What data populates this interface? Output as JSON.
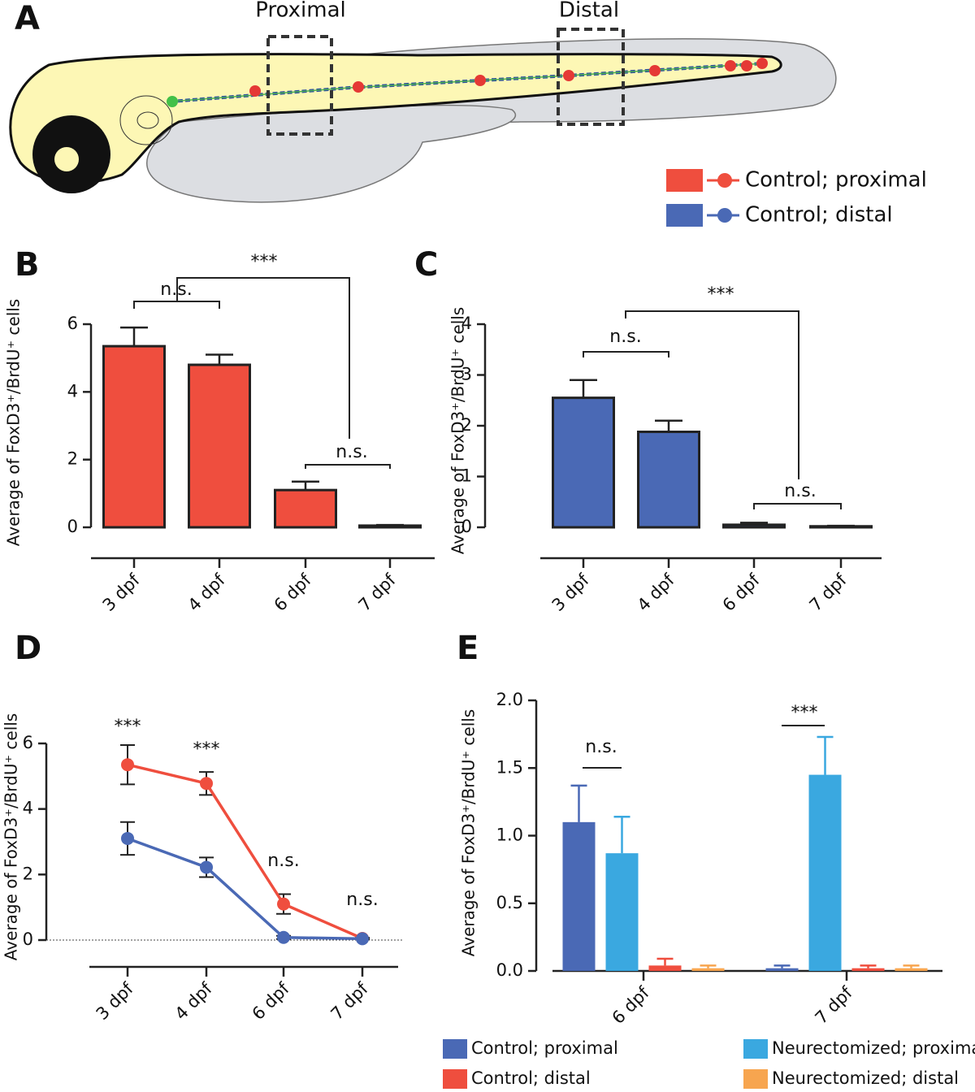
{
  "diagram": {
    "panel": "A",
    "regions": [
      "Proximal",
      "Distal"
    ]
  },
  "chart_data": [
    {
      "type": "bar",
      "panel": "B",
      "ylabel": "Average of FoxD3⁺/BrdU⁺ cells",
      "categories": [
        "3 dpf",
        "4 dpf",
        "6 dpf",
        "7 dpf"
      ],
      "values": [
        5.35,
        4.8,
        1.1,
        0.05
      ],
      "errors": [
        0.55,
        0.3,
        0.25,
        0.02
      ],
      "color": "#ef4e3e",
      "ylim": [
        0,
        6
      ],
      "yticks": [
        0,
        2,
        4,
        6
      ],
      "annotations": [
        "n.s.",
        "***",
        "n.s."
      ]
    },
    {
      "type": "bar",
      "panel": "C",
      "ylabel": "Average of FoxD3⁺/BrdU⁺ cells",
      "categories": [
        "3 dpf",
        "4 dpf",
        "6 dpf",
        "7 dpf"
      ],
      "values": [
        2.55,
        1.88,
        0.05,
        0.02
      ],
      "errors": [
        0.35,
        0.22,
        0.04,
        0.01
      ],
      "color": "#4a69b5",
      "ylim": [
        0,
        4
      ],
      "yticks": [
        0,
        1,
        2,
        3,
        4
      ],
      "annotations": [
        "n.s.",
        "***",
        "n.s."
      ]
    },
    {
      "type": "line",
      "panel": "D",
      "ylabel": "Average of FoxD3⁺/BrdU⁺ cells",
      "categories": [
        "3 dpf",
        "4 dpf",
        "6 dpf",
        "7 dpf"
      ],
      "series": [
        {
          "name": "Control; proximal",
          "color": "#ef4e3e",
          "values": [
            5.35,
            4.78,
            1.1,
            0.05
          ],
          "errors": [
            0.6,
            0.35,
            0.3,
            0.02
          ]
        },
        {
          "name": "Control; distal",
          "color": "#4a69b5",
          "values": [
            3.1,
            2.22,
            0.08,
            0.04
          ],
          "errors": [
            0.5,
            0.3,
            0.05,
            0.02
          ]
        }
      ],
      "ylim": [
        0,
        6
      ],
      "yticks": [
        0,
        2,
        4,
        6
      ],
      "annotations": [
        "***",
        "***",
        "n.s.",
        "n.s."
      ]
    },
    {
      "type": "grouped_bar",
      "panel": "E",
      "ylabel": "Average of FoxD3⁺/BrdU⁺ cells",
      "categories": [
        "6 dpf",
        "7 dpf"
      ],
      "series": [
        {
          "name": "Control; proximal",
          "color": "#4a69b5",
          "values": [
            1.1,
            0.02
          ],
          "errors": [
            0.27,
            0.02
          ]
        },
        {
          "name": "Neurectomized; proximal",
          "color": "#3aa8e0",
          "values": [
            0.87,
            1.45
          ],
          "errors": [
            0.27,
            0.28
          ]
        },
        {
          "name": "Control; distal",
          "color": "#ef4e3e",
          "values": [
            0.04,
            0.02
          ],
          "errors": [
            0.05,
            0.02
          ]
        },
        {
          "name": "Neurectomized; distal",
          "color": "#f7a54f",
          "values": [
            0.02,
            0.02
          ],
          "errors": [
            0.02,
            0.02
          ]
        }
      ],
      "ylim": [
        0,
        2
      ],
      "yticks": [
        {
          "value": 0,
          "label": "0.0"
        },
        0.5,
        {
          "value": 1,
          "label": "1.0"
        },
        1.5,
        {
          "value": 2,
          "label": "2.0"
        }
      ],
      "annotations": [
        "n.s.",
        "***"
      ]
    }
  ]
}
